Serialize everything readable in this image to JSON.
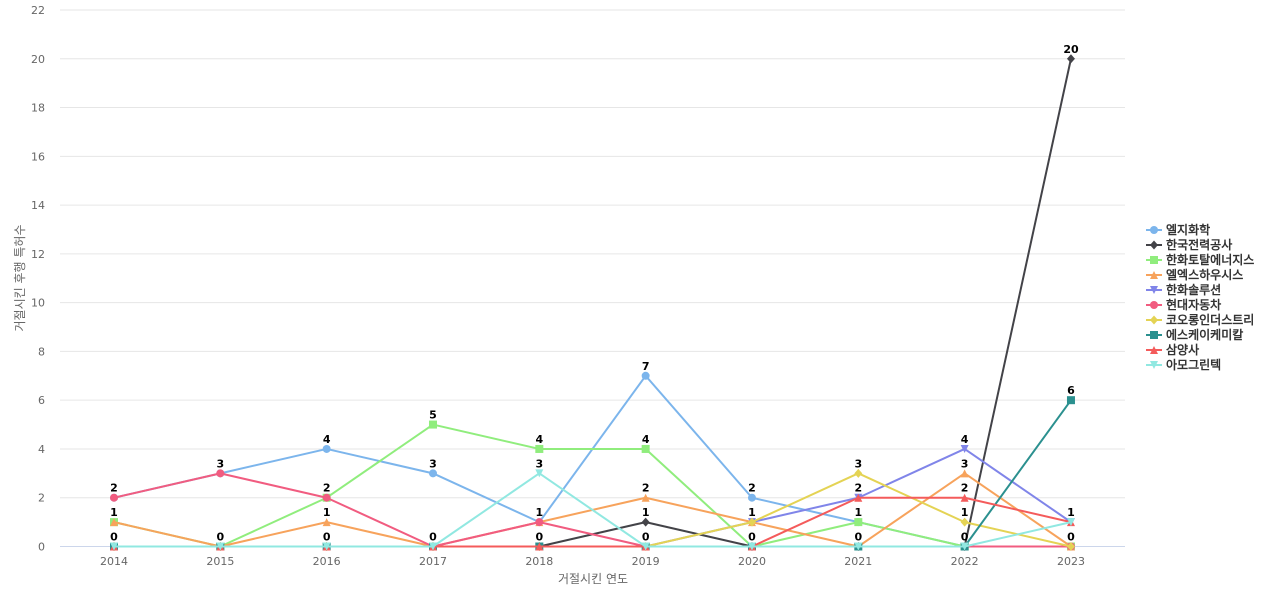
{
  "chart_data": {
    "type": "line",
    "title": "",
    "xlabel": "거절시킨 연도",
    "ylabel": "거절시킨 후행 특허수",
    "categories": [
      "2014",
      "2015",
      "2016",
      "2017",
      "2018",
      "2019",
      "2020",
      "2021",
      "2022",
      "2023"
    ],
    "ylim": [
      0,
      22
    ],
    "yticks": [
      0,
      2,
      4,
      6,
      8,
      10,
      12,
      14,
      16,
      18,
      20,
      22
    ],
    "grid": true,
    "legend_position": "right",
    "series": [
      {
        "name": "엘지화학",
        "color": "#7cb5ec",
        "marker": "circle",
        "values": [
          2,
          3,
          4,
          3,
          1,
          7,
          2,
          1,
          0,
          0
        ]
      },
      {
        "name": "한국전력공사",
        "color": "#434348",
        "marker": "diamond",
        "values": [
          0,
          0,
          0,
          0,
          0,
          1,
          0,
          0,
          0,
          20
        ]
      },
      {
        "name": "한화토탈에너지스",
        "color": "#90ed7d",
        "marker": "square",
        "values": [
          1,
          0,
          2,
          5,
          4,
          4,
          0,
          1,
          0,
          0
        ]
      },
      {
        "name": "엘엑스하우시스",
        "color": "#f7a35c",
        "marker": "triangle",
        "values": [
          1,
          0,
          1,
          0,
          1,
          2,
          1,
          0,
          3,
          0
        ]
      },
      {
        "name": "한화솔루션",
        "color": "#8085e9",
        "marker": "triangle-down",
        "values": [
          0,
          0,
          0,
          0,
          0,
          0,
          1,
          2,
          4,
          1
        ]
      },
      {
        "name": "현대자동차",
        "color": "#f15c80",
        "marker": "circle",
        "values": [
          2,
          3,
          2,
          0,
          1,
          0,
          0,
          0,
          0,
          0
        ]
      },
      {
        "name": "코오롱인더스트리",
        "color": "#e4d354",
        "marker": "diamond",
        "values": [
          0,
          0,
          0,
          0,
          0,
          0,
          1,
          3,
          1,
          0
        ]
      },
      {
        "name": "에스케이케미칼",
        "color": "#2b908f",
        "marker": "square",
        "values": [
          0,
          0,
          0,
          0,
          0,
          0,
          0,
          0,
          0,
          6
        ]
      },
      {
        "name": "삼양사",
        "color": "#f45b5b",
        "marker": "triangle",
        "values": [
          0,
          0,
          0,
          0,
          0,
          0,
          0,
          2,
          2,
          1
        ]
      },
      {
        "name": "아모그린텍",
        "color": "#91e8e1",
        "marker": "triangle-down",
        "values": [
          0,
          0,
          0,
          0,
          3,
          0,
          0,
          0,
          0,
          1
        ]
      }
    ],
    "data_labels": [
      {
        "category": "2014",
        "text": "2",
        "value": 2
      },
      {
        "category": "2014",
        "text": "1",
        "value": 1
      },
      {
        "category": "2014",
        "text": "0",
        "value": 0
      },
      {
        "category": "2015",
        "text": "3",
        "value": 3
      },
      {
        "category": "2015",
        "text": "0",
        "value": 0
      },
      {
        "category": "2016",
        "text": "4",
        "value": 4
      },
      {
        "category": "2016",
        "text": "2",
        "value": 2
      },
      {
        "category": "2016",
        "text": "1",
        "value": 1
      },
      {
        "category": "2016",
        "text": "0",
        "value": 0
      },
      {
        "category": "2017",
        "text": "5",
        "value": 5
      },
      {
        "category": "2017",
        "text": "3",
        "value": 3
      },
      {
        "category": "2017",
        "text": "0",
        "value": 0
      },
      {
        "category": "2018",
        "text": "4",
        "value": 4
      },
      {
        "category": "2018",
        "text": "3",
        "value": 3
      },
      {
        "category": "2018",
        "text": "1",
        "value": 1
      },
      {
        "category": "2018",
        "text": "0",
        "value": 0
      },
      {
        "category": "2019",
        "text": "7",
        "value": 7
      },
      {
        "category": "2019",
        "text": "4",
        "value": 4
      },
      {
        "category": "2019",
        "text": "2",
        "value": 2
      },
      {
        "category": "2019",
        "text": "1",
        "value": 1
      },
      {
        "category": "2019",
        "text": "0",
        "value": 0
      },
      {
        "category": "2020",
        "text": "2",
        "value": 2
      },
      {
        "category": "2020",
        "text": "1",
        "value": 1
      },
      {
        "category": "2020",
        "text": "0",
        "value": 0
      },
      {
        "category": "2021",
        "text": "3",
        "value": 3
      },
      {
        "category": "2021",
        "text": "2",
        "value": 2
      },
      {
        "category": "2021",
        "text": "1",
        "value": 1
      },
      {
        "category": "2021",
        "text": "0",
        "value": 0
      },
      {
        "category": "2022",
        "text": "4",
        "value": 4
      },
      {
        "category": "2022",
        "text": "3",
        "value": 3
      },
      {
        "category": "2022",
        "text": "2",
        "value": 2
      },
      {
        "category": "2022",
        "text": "1",
        "value": 1
      },
      {
        "category": "2022",
        "text": "0",
        "value": 0
      },
      {
        "category": "2023",
        "text": "20",
        "value": 20
      },
      {
        "category": "2023",
        "text": "6",
        "value": 6
      },
      {
        "category": "2023",
        "text": "1",
        "value": 1
      },
      {
        "category": "2023",
        "text": "0",
        "value": 0
      }
    ]
  }
}
